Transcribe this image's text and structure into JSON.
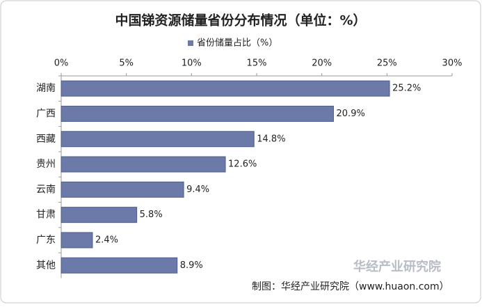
{
  "chart_data": {
    "type": "bar",
    "orientation": "horizontal",
    "title": "中国锑资源储量省份分布情况（单位：%）",
    "series": [
      {
        "name": "省份储量占比（%）",
        "color": "#6c7aa9",
        "values": [
          25.2,
          20.9,
          14.8,
          12.6,
          9.4,
          5.8,
          2.4,
          8.9
        ],
        "value_labels": [
          "25.2%",
          "20.9%",
          "14.8%",
          "12.6%",
          "9.4%",
          "5.8%",
          "2.4%",
          "8.9%"
        ]
      }
    ],
    "categories": [
      "湖南",
      "广西",
      "西藏",
      "贵州",
      "云南",
      "甘肃",
      "广东",
      "其他"
    ],
    "xlim": [
      0,
      30
    ],
    "xticks": [
      {
        "value": 0,
        "label": "0%"
      },
      {
        "value": 5,
        "label": "5%"
      },
      {
        "value": 10,
        "label": "10%"
      },
      {
        "value": 15,
        "label": "15%"
      },
      {
        "value": 20,
        "label": "20%"
      },
      {
        "value": 25,
        "label": "25%"
      },
      {
        "value": 30,
        "label": "30%"
      }
    ],
    "legend": "top",
    "source": "制图：华经产业研究院（www.huaon.com）",
    "watermark": "华经产业研究院"
  }
}
